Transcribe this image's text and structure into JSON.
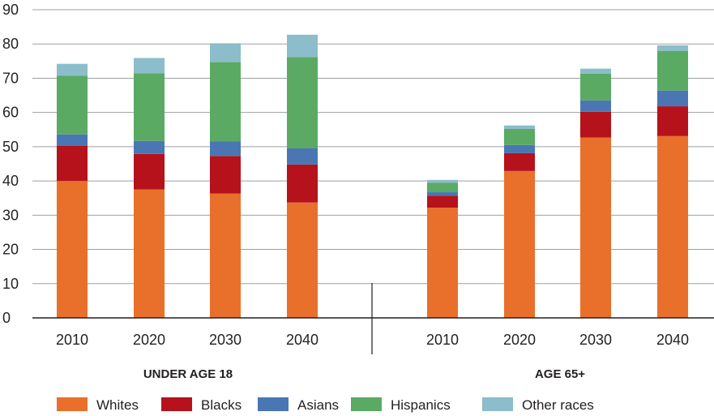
{
  "chart_data": {
    "type": "bar",
    "stacked": true,
    "title": "",
    "xlabel": "",
    "ylabel": "",
    "ylim": [
      0,
      90
    ],
    "yticks": [
      0,
      10,
      20,
      30,
      40,
      50,
      60,
      70,
      80,
      90
    ],
    "grid": true,
    "legend_position": "bottom",
    "groups": [
      {
        "label": "UNDER AGE 18",
        "categories": [
          "2010",
          "2020",
          "2030",
          "2040"
        ]
      },
      {
        "label": "AGE 65+",
        "categories": [
          "2010",
          "2020",
          "2030",
          "2040"
        ]
      }
    ],
    "series": [
      {
        "name": "Whites",
        "color": "#e8702a",
        "values": [
          [
            40.0,
            37.5,
            36.3,
            33.7
          ],
          [
            32.2,
            42.9,
            52.7,
            53.1
          ]
        ]
      },
      {
        "name": "Blacks",
        "color": "#b5121b",
        "values": [
          [
            10.3,
            10.4,
            11.0,
            11.1
          ],
          [
            3.5,
            5.2,
            7.5,
            8.7
          ]
        ]
      },
      {
        "name": "Asians",
        "color": "#4a77b4",
        "values": [
          [
            3.3,
            3.8,
            4.3,
            4.7
          ],
          [
            1.0,
            2.4,
            3.3,
            4.6
          ]
        ]
      },
      {
        "name": "Hispanics",
        "color": "#5aaa64",
        "values": [
          [
            17.1,
            19.7,
            23.1,
            26.7
          ],
          [
            2.8,
            4.7,
            7.8,
            11.6
          ]
        ]
      },
      {
        "name": "Other races",
        "color": "#8bbdcb",
        "values": [
          [
            3.5,
            4.5,
            5.5,
            6.5
          ],
          [
            0.8,
            1.0,
            1.5,
            1.6
          ]
        ]
      }
    ]
  }
}
